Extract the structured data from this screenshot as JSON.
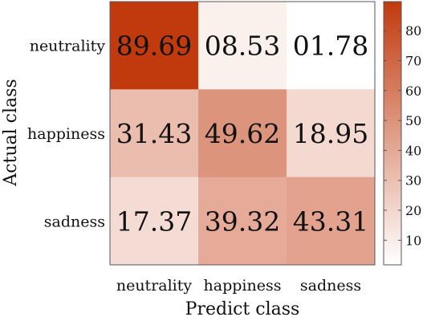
{
  "chart_data": {
    "type": "heatmap",
    "xlabel": "Predict class",
    "ylabel": "Actual class",
    "x_categories": [
      "neutrality",
      "happiness",
      "sadness"
    ],
    "y_categories": [
      "neutrality",
      "happiness",
      "sadness"
    ],
    "cell_labels": [
      [
        "89.69",
        "08.53",
        "01.78"
      ],
      [
        "31.43",
        "49.62",
        "18.95"
      ],
      [
        "17.37",
        "39.32",
        "43.31"
      ]
    ],
    "values": [
      [
        89.69,
        8.53,
        1.78
      ],
      [
        31.43,
        49.62,
        18.95
      ],
      [
        17.37,
        39.32,
        43.31
      ]
    ],
    "colorbar": {
      "ticks": [
        10,
        20,
        30,
        40,
        50,
        60,
        70,
        80
      ],
      "low_color": "#ffffff",
      "high_color": "#c13a0e"
    }
  }
}
